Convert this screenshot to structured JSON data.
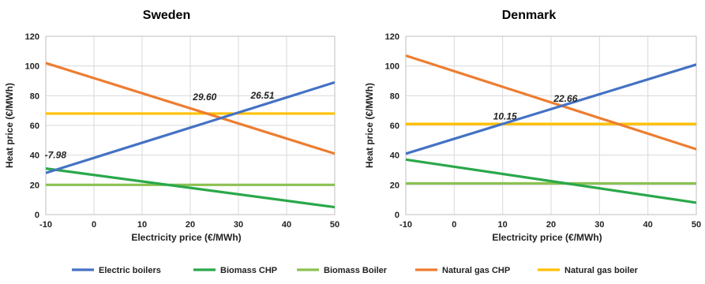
{
  "chart_data": [
    {
      "type": "line",
      "title": "Sweden",
      "xlabel": "Electricity price (€/MWh)",
      "ylabel": "Heat price (€/MWh)",
      "xlim": [
        -10,
        50
      ],
      "ylim": [
        0,
        120
      ],
      "xticks": [
        "-10",
        "0",
        "10",
        "20",
        "30",
        "40",
        "50"
      ],
      "yticks": [
        "0",
        "20",
        "40",
        "60",
        "80",
        "100",
        "120"
      ],
      "grid": true,
      "series": [
        {
          "name": "Electric boilers",
          "x": [
            -10,
            50
          ],
          "values": [
            28,
            89
          ]
        },
        {
          "name": "Biomass CHP",
          "x": [
            -10,
            50
          ],
          "values": [
            31,
            5
          ]
        },
        {
          "name": "Biomass Boiler",
          "x": [
            -10,
            50
          ],
          "values": [
            20,
            20
          ]
        },
        {
          "name": "Natural gas CHP",
          "x": [
            -10,
            50
          ],
          "values": [
            102,
            41
          ]
        },
        {
          "name": "Natural gas boiler",
          "x": [
            -10,
            50
          ],
          "values": [
            68,
            68
          ]
        }
      ],
      "annotations": [
        {
          "text": "-7.98",
          "x": -7.98,
          "y": 38
        },
        {
          "text": "29.60",
          "x": 23,
          "y": 77
        },
        {
          "text": "26.51",
          "x": 35,
          "y": 78
        }
      ]
    },
    {
      "type": "line",
      "title": "Denmark",
      "xlabel": "Electricity price (€/MWh)",
      "ylabel": "Heat price (€/MWh)",
      "xlim": [
        -10,
        50
      ],
      "ylim": [
        0,
        120
      ],
      "xticks": [
        "-10",
        "0",
        "10",
        "20",
        "30",
        "40",
        "50"
      ],
      "yticks": [
        "0",
        "20",
        "40",
        "60",
        "80",
        "100",
        "120"
      ],
      "grid": true,
      "series": [
        {
          "name": "Electric boilers",
          "x": [
            -10,
            50
          ],
          "values": [
            41,
            101
          ]
        },
        {
          "name": "Biomass CHP",
          "x": [
            -10,
            50
          ],
          "values": [
            37,
            8
          ]
        },
        {
          "name": "Biomass Boiler",
          "x": [
            -10,
            50
          ],
          "values": [
            21,
            21
          ]
        },
        {
          "name": "Natural gas CHP",
          "x": [
            -10,
            50
          ],
          "values": [
            107,
            44
          ]
        },
        {
          "name": "Natural gas boiler",
          "x": [
            -10,
            50
          ],
          "values": [
            61,
            61
          ]
        }
      ],
      "annotations": [
        {
          "text": "10.15",
          "x": 10.5,
          "y": 64
        },
        {
          "text": "22.66",
          "x": 23,
          "y": 76
        }
      ]
    }
  ],
  "legend": {
    "placement": "bottom",
    "items": [
      {
        "name": "Electric boilers",
        "color": "#4472c4"
      },
      {
        "name": "Biomass CHP",
        "color": "#2aa84a"
      },
      {
        "name": "Biomass Boiler",
        "color": "#8cc152"
      },
      {
        "name": "Natural gas CHP",
        "color": "#ed7d31"
      },
      {
        "name": "Natural gas boiler",
        "color": "#ffc000"
      }
    ]
  }
}
